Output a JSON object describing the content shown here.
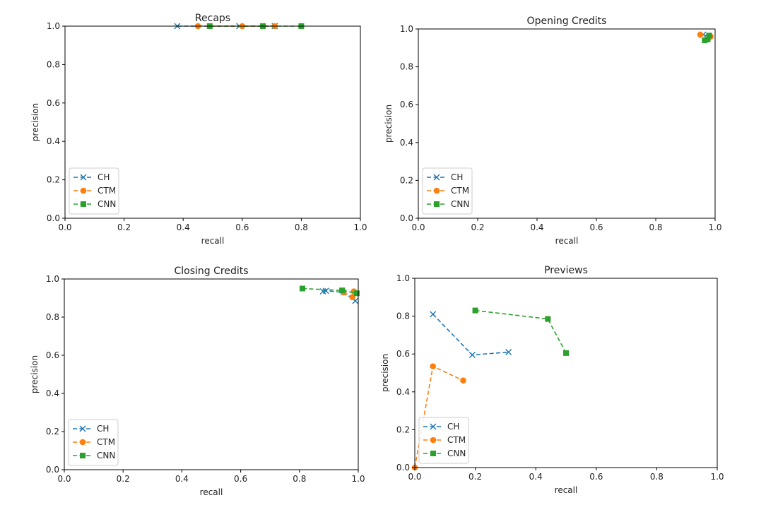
{
  "chart_data": [
    {
      "type": "line",
      "title": "Recaps",
      "xlabel": "recall",
      "ylabel": "precision",
      "xlim": [
        0,
        1
      ],
      "ylim": [
        0,
        1
      ],
      "xticks": [
        "0.0",
        "0.2",
        "0.4",
        "0.6",
        "0.8",
        "1.0"
      ],
      "yticks": [
        "0.0",
        "0.2",
        "0.4",
        "0.6",
        "0.8",
        "1.0"
      ],
      "grid": false,
      "legend_position": "lower-left",
      "series": [
        {
          "name": "CH",
          "marker": "x",
          "color": "#1f77b4",
          "x": [
            0.38,
            0.59,
            0.71
          ],
          "y": [
            1.0,
            1.0,
            1.0
          ]
        },
        {
          "name": "CTM",
          "marker": "o",
          "color": "#ff7f0e",
          "x": [
            0.45,
            0.6,
            0.71
          ],
          "y": [
            1.0,
            1.0,
            1.0
          ]
        },
        {
          "name": "CNN",
          "marker": "s",
          "color": "#2ca02c",
          "x": [
            0.49,
            0.67,
            0.8
          ],
          "y": [
            1.0,
            1.0,
            1.0
          ]
        }
      ]
    },
    {
      "type": "line",
      "title": "Opening Credits",
      "xlabel": "recall",
      "ylabel": "precision",
      "xlim": [
        0,
        1
      ],
      "ylim": [
        0,
        1
      ],
      "xticks": [
        "0.0",
        "0.2",
        "0.4",
        "0.6",
        "0.8",
        "1.0"
      ],
      "yticks": [
        "0.0",
        "0.2",
        "0.4",
        "0.6",
        "0.8",
        "1.0"
      ],
      "grid": false,
      "legend_position": "lower-left",
      "series": [
        {
          "name": "CH",
          "marker": "x",
          "color": "#1f77b4",
          "x": [
            0.96,
            0.98
          ],
          "y": [
            0.97,
            0.96
          ]
        },
        {
          "name": "CTM",
          "marker": "o",
          "color": "#ff7f0e",
          "x": [
            0.95,
            0.985
          ],
          "y": [
            0.97,
            0.96
          ]
        },
        {
          "name": "CNN",
          "marker": "s",
          "color": "#2ca02c",
          "x": [
            0.965,
            0.975,
            0.98
          ],
          "y": [
            0.94,
            0.945,
            0.965
          ]
        }
      ]
    },
    {
      "type": "line",
      "title": "Closing Credits",
      "xlabel": "recall",
      "ylabel": "precision",
      "xlim": [
        0,
        1
      ],
      "ylim": [
        0,
        1
      ],
      "xticks": [
        "0.0",
        "0.2",
        "0.4",
        "0.6",
        "0.8",
        "1.0"
      ],
      "yticks": [
        "0.0",
        "0.2",
        "0.4",
        "0.6",
        "0.8",
        "1.0"
      ],
      "grid": false,
      "legend_position": "lower-left",
      "series": [
        {
          "name": "CH",
          "marker": "x",
          "color": "#1f77b4",
          "x": [
            0.88,
            0.89,
            0.95,
            0.99
          ],
          "y": [
            0.935,
            0.938,
            0.93,
            0.885
          ]
        },
        {
          "name": "CTM",
          "marker": "o",
          "color": "#ff7f0e",
          "x": [
            0.95,
            0.98,
            0.985
          ],
          "y": [
            0.93,
            0.905,
            0.935
          ]
        },
        {
          "name": "CNN",
          "marker": "s",
          "color": "#2ca02c",
          "x": [
            0.81,
            0.945,
            0.995
          ],
          "y": [
            0.95,
            0.94,
            0.925
          ]
        }
      ]
    },
    {
      "type": "line",
      "title": "Previews",
      "xlabel": "recall",
      "ylabel": "precision",
      "xlim": [
        0,
        1
      ],
      "ylim": [
        0,
        1
      ],
      "xticks": [
        "0.0",
        "0.2",
        "0.4",
        "0.6",
        "0.8",
        "1.0"
      ],
      "yticks": [
        "0.0",
        "0.2",
        "0.4",
        "0.6",
        "0.8",
        "1.0"
      ],
      "grid": false,
      "legend_position": "lower-left",
      "series": [
        {
          "name": "CH",
          "marker": "x",
          "color": "#1f77b4",
          "x": [
            0.06,
            0.19,
            0.31
          ],
          "y": [
            0.81,
            0.595,
            0.61
          ]
        },
        {
          "name": "CTM",
          "marker": "o",
          "color": "#ff7f0e",
          "x": [
            0.0,
            0.06,
            0.16
          ],
          "y": [
            0.0,
            0.535,
            0.46
          ]
        },
        {
          "name": "CNN",
          "marker": "s",
          "color": "#2ca02c",
          "x": [
            0.2,
            0.44,
            0.5
          ],
          "y": [
            0.83,
            0.785,
            0.605
          ]
        }
      ]
    }
  ]
}
